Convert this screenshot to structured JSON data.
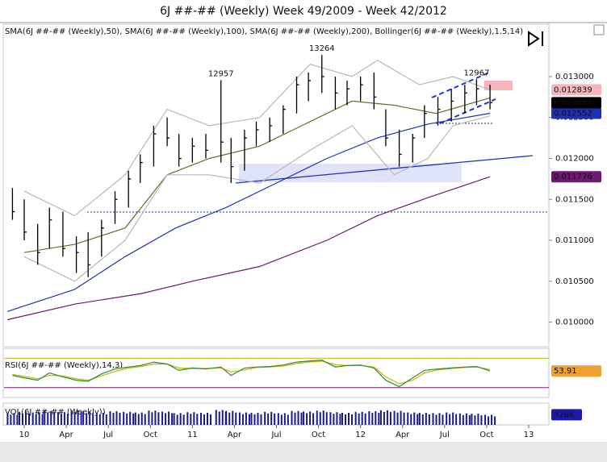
{
  "title": "6J ##-## (Weekly)  Week 49/2009 - Week 42/2012",
  "chart_data": [
    {
      "type": "ohlc",
      "indicator_label": "SMA(6J ##-## (Weekly),50), SMA(6J ##-## (Weekly),100), SMA(6J ##-## (Weekly),200), Bollinger(6J ##-## (Weekly),1.5,14)",
      "xlim": [
        2009.88,
        2013.12
      ],
      "ylim": [
        0.0097,
        0.01364
      ],
      "yticks": [
        {
          "value": 0.01,
          "label": "0.010000"
        },
        {
          "value": 0.0105,
          "label": "0.010500"
        },
        {
          "value": 0.011,
          "label": "0.011000"
        },
        {
          "value": 0.0115,
          "label": "0.011500"
        },
        {
          "value": 0.012,
          "label": "0.012000"
        },
        {
          "value": 0.0125,
          "label": "0.012500"
        },
        {
          "value": 0.013,
          "label": "0.013000"
        }
      ],
      "color": "#000000",
      "close_marker_color": "#000000",
      "x": [
        2009.93,
        2010.0,
        2010.08,
        2010.15,
        2010.23,
        2010.31,
        2010.38,
        2010.46,
        2010.54,
        2010.62,
        2010.69,
        2010.77,
        2010.85,
        2010.92,
        2011.0,
        2011.08,
        2011.17,
        2011.23,
        2011.31,
        2011.38,
        2011.46,
        2011.54,
        2011.62,
        2011.69,
        2011.77,
        2011.85,
        2011.92,
        2012.0,
        2012.08,
        2012.15,
        2012.23,
        2012.31,
        2012.38,
        2012.46,
        2012.54,
        2012.62,
        2012.69,
        2012.77
      ],
      "high": [
        0.01164,
        0.0115,
        0.0112,
        0.0114,
        0.01135,
        0.01105,
        0.0111,
        0.01125,
        0.0116,
        0.01185,
        0.01205,
        0.0124,
        0.0125,
        0.0123,
        0.01225,
        0.0123,
        0.012957,
        0.01225,
        0.01235,
        0.01245,
        0.0125,
        0.01265,
        0.013,
        0.01305,
        0.013264,
        0.013,
        0.01295,
        0.013,
        0.01305,
        0.0126,
        0.01235,
        0.0123,
        0.01265,
        0.01275,
        0.01285,
        0.0129,
        0.012967,
        0.0129
      ],
      "low": [
        0.01125,
        0.011,
        0.0107,
        0.0109,
        0.0108,
        0.0106,
        0.01055,
        0.0108,
        0.0112,
        0.0114,
        0.0117,
        0.0119,
        0.01215,
        0.0119,
        0.01195,
        0.012,
        0.01195,
        0.0117,
        0.01185,
        0.01215,
        0.0122,
        0.0123,
        0.01255,
        0.0127,
        0.0128,
        0.0126,
        0.01265,
        0.0127,
        0.0126,
        0.01215,
        0.0119,
        0.01195,
        0.01225,
        0.0124,
        0.01245,
        0.01255,
        0.01265,
        0.0126
      ],
      "close": [
        0.01135,
        0.0111,
        0.01085,
        0.01125,
        0.0109,
        0.01085,
        0.0107,
        0.01115,
        0.0115,
        0.01175,
        0.01195,
        0.0123,
        0.01225,
        0.012,
        0.01215,
        0.0121,
        0.0122,
        0.0119,
        0.01225,
        0.01235,
        0.0124,
        0.0126,
        0.0129,
        0.01295,
        0.013,
        0.0128,
        0.01285,
        0.0129,
        0.01275,
        0.01225,
        0.01205,
        0.01225,
        0.01255,
        0.0126,
        0.0127,
        0.0128,
        0.01285,
        0.012681
      ],
      "annotations": [
        {
          "x": 2011.17,
          "value": 0.012957,
          "label": "12957"
        },
        {
          "x": 2011.77,
          "value": 0.013264,
          "label": "13264"
        },
        {
          "x": 2012.69,
          "value": 0.012967,
          "label": "12967"
        }
      ],
      "series": [
        {
          "color": "#6b6b2a",
          "x": [
            2010.0,
            2010.3,
            2010.6,
            2010.85,
            2011.1,
            2011.4,
            2011.7,
            2011.95,
            2012.2,
            2012.45,
            2012.77
          ],
          "values": [
            0.01085,
            0.01095,
            0.01115,
            0.0118,
            0.012,
            0.01215,
            0.01245,
            0.0127,
            0.01265,
            0.01255,
            0.01274
          ]
        },
        {
          "color": "#2233bb",
          "marker_color": "#1f2fb0",
          "x": [
            2009.9,
            2010.3,
            2010.6,
            2010.9,
            2011.2,
            2011.5,
            2011.8,
            2012.1,
            2012.4,
            2012.77
          ],
          "values": [
            0.01013,
            0.0104,
            0.0108,
            0.01115,
            0.0114,
            0.0117,
            0.012,
            0.01225,
            0.01242,
            0.012552
          ]
        },
        {
          "color": "#6a1b6e",
          "marker_color": "#6a1b6e",
          "x": [
            2009.9,
            2010.3,
            2010.7,
            2011.0,
            2011.4,
            2011.8,
            2012.1,
            2012.4,
            2012.77
          ],
          "values": [
            0.01003,
            0.01022,
            0.01035,
            0.0105,
            0.01068,
            0.011,
            0.0113,
            0.01152,
            0.011776
          ]
        },
        {
          "color": "#b8b8b8",
          "marker_color": "#f4b6bc",
          "x": [
            2010.0,
            2010.3,
            2010.6,
            2010.85,
            2011.1,
            2011.4,
            2011.7,
            2011.95,
            2012.1,
            2012.35,
            2012.55,
            2012.77
          ],
          "values": [
            0.0116,
            0.0113,
            0.0118,
            0.0126,
            0.0124,
            0.0125,
            0.01315,
            0.013,
            0.0132,
            0.0129,
            0.013,
            0.012839
          ]
        },
        {
          "color": "#b8b8b8",
          "x": [
            2010.0,
            2010.3,
            2010.6,
            2010.85,
            2011.1,
            2011.4,
            2011.7,
            2011.95,
            2012.2,
            2012.4,
            2012.55,
            2012.77
          ],
          "values": [
            0.0108,
            0.0105,
            0.011,
            0.0118,
            0.0118,
            0.0117,
            0.0121,
            0.0124,
            0.0118,
            0.012,
            0.0124,
            0.01252
          ]
        }
      ]
    },
    {
      "type": "line",
      "indicator_label": "RSI(6J ##-## (Weekly),14,3)",
      "xlim": [
        2009.88,
        2013.12
      ],
      "ylim": [
        0,
        100
      ],
      "levels": [
        20,
        80
      ],
      "yticks": [
        53.91
      ],
      "marker_color": "#f0a030",
      "x": [
        2009.93,
        2010.0,
        2010.08,
        2010.15,
        2010.23,
        2010.31,
        2010.38,
        2010.46,
        2010.54,
        2010.62,
        2010.69,
        2010.77,
        2010.85,
        2010.92,
        2011.0,
        2011.08,
        2011.17,
        2011.23,
        2011.31,
        2011.38,
        2011.46,
        2011.54,
        2011.62,
        2011.69,
        2011.77,
        2011.85,
        2011.92,
        2012.0,
        2012.08,
        2012.15,
        2012.23,
        2012.31,
        2012.38,
        2012.46,
        2012.54,
        2012.62,
        2012.69,
        2012.77
      ],
      "series": [
        {
          "color": "#2e8b3a",
          "values": [
            45,
            40,
            35,
            50,
            42,
            35,
            33,
            48,
            58,
            62,
            65,
            72,
            68,
            55,
            60,
            58,
            62,
            45,
            60,
            62,
            63,
            66,
            72,
            74,
            76,
            62,
            65,
            66,
            60,
            35,
            22,
            40,
            55,
            58,
            60,
            62,
            63,
            53.91
          ]
        },
        {
          "color": "#c8b400",
          "values": [
            47,
            43,
            38,
            45,
            44,
            38,
            35,
            44,
            53,
            60,
            63,
            68,
            68,
            60,
            59,
            59,
            60,
            52,
            56,
            61,
            62,
            64,
            69,
            72,
            74,
            67,
            65,
            65,
            62,
            42,
            28,
            35,
            50,
            56,
            59,
            61,
            62,
            57
          ]
        }
      ]
    },
    {
      "type": "bar",
      "indicator_label": "VOL(6J ##-## (Weekly))",
      "xlim": [
        2009.88,
        2013.12
      ],
      "ylim": [
        0,
        700000
      ],
      "yticks": [
        {
          "value": 326000,
          "label": "326K"
        }
      ],
      "color": "#1a1a8c",
      "marker_color": "#1a1ab0",
      "x": [
        2009.93,
        2010.0,
        2010.08,
        2010.15,
        2010.23,
        2010.31,
        2010.38,
        2010.46,
        2010.54,
        2010.62,
        2010.69,
        2010.77,
        2010.85,
        2010.92,
        2011.0,
        2011.08,
        2011.17,
        2011.23,
        2011.31,
        2011.38,
        2011.46,
        2011.54,
        2011.62,
        2011.69,
        2011.77,
        2011.85,
        2011.92,
        2012.0,
        2012.08,
        2012.15,
        2012.23,
        2012.31,
        2012.38,
        2012.46,
        2012.54,
        2012.62,
        2012.69,
        2012.77
      ],
      "values": [
        380000,
        420000,
        400000,
        450000,
        410000,
        470000,
        430000,
        390000,
        440000,
        420000,
        400000,
        460000,
        430000,
        380000,
        410000,
        390000,
        480000,
        450000,
        400000,
        390000,
        420000,
        380000,
        450000,
        430000,
        460000,
        410000,
        390000,
        420000,
        440000,
        470000,
        450000,
        400000,
        390000,
        380000,
        400000,
        370000,
        360000,
        326000
      ],
      "xticks": [
        {
          "value": 2010.0,
          "label": "10"
        },
        {
          "value": 2010.25,
          "label": "Apr"
        },
        {
          "value": 2010.5,
          "label": "Jul"
        },
        {
          "value": 2010.75,
          "label": "Oct"
        },
        {
          "value": 2011.0,
          "label": "11"
        },
        {
          "value": 2011.25,
          "label": "Apr"
        },
        {
          "value": 2011.5,
          "label": "Jul"
        },
        {
          "value": 2011.75,
          "label": "Oct"
        },
        {
          "value": 2012.0,
          "label": "12"
        },
        {
          "value": 2012.25,
          "label": "Apr"
        },
        {
          "value": 2012.5,
          "label": "Jul"
        },
        {
          "value": 2012.75,
          "label": "Oct"
        },
        {
          "value": 2013.0,
          "label": "13"
        }
      ]
    }
  ]
}
